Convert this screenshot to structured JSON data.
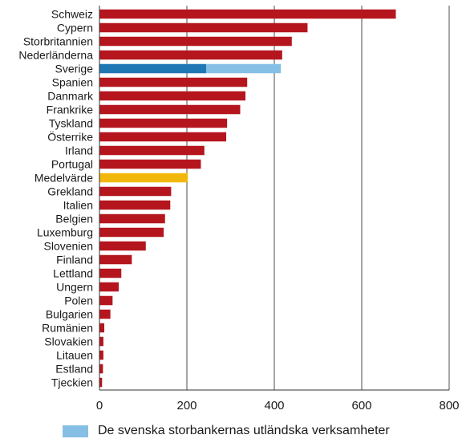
{
  "chart_data": {
    "type": "bar",
    "orientation": "horizontal",
    "categories": [
      "Schweiz",
      "Cypern",
      "Storbritannien",
      "Nederländerna",
      "Sverige",
      "Spanien",
      "Danmark",
      "Frankrike",
      "Tyskland",
      "Österrike",
      "Irland",
      "Portugal",
      "Medelvärde",
      "Grekland",
      "Italien",
      "Belgien",
      "Luxemburg",
      "Slovenien",
      "Finland",
      "Lettland",
      "Ungern",
      "Polen",
      "Bulgarien",
      "Rumänien",
      "Slovakien",
      "Litauen",
      "Estland",
      "Tjeckien"
    ],
    "values": [
      678,
      476,
      440,
      418,
      415,
      338,
      334,
      322,
      292,
      290,
      240,
      232,
      202,
      164,
      162,
      150,
      147,
      106,
      74,
      50,
      44,
      30,
      25,
      11,
      9,
      9,
      8,
      6
    ],
    "stacked_segments": {
      "Sverige": [
        {
          "series": "",
          "value": 244,
          "color": "#1f77b4"
        },
        {
          "series": "De svenska storbankernas utländska verksamheter",
          "value": 171,
          "color": "#86bfe5"
        }
      ]
    },
    "highlight": {
      "Medelvärde": "#f2b70b"
    },
    "xlim": [
      0,
      800
    ],
    "xticks": [
      0,
      200,
      400,
      600,
      800
    ],
    "grid": true,
    "legend": {
      "position": "bottom-left",
      "entries": [
        {
          "label": "De svenska storbankernas utländska verksamheter",
          "color": "#86bfe5"
        }
      ]
    },
    "colors": {
      "default_bar": "#b5161e",
      "gridline": "#4d4d4d",
      "axis": "#333333"
    }
  }
}
